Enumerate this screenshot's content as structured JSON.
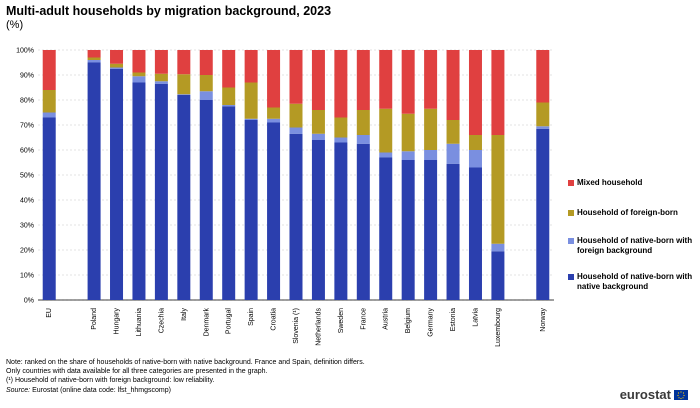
{
  "header": {
    "title": "Multi-adult households by migration background, 2023",
    "subtitle": "(%)"
  },
  "legend": {
    "items": [
      {
        "label": "Mixed household",
        "color": "#E04040"
      },
      {
        "label": "Household of foreign-born",
        "color": "#B49A24"
      },
      {
        "label": "Household of native-born with foreign background",
        "color": "#7A8FE0"
      },
      {
        "label": "Household of native-born with native background",
        "color": "#2B3FAE"
      }
    ]
  },
  "notes": {
    "line1": "Note: ranked on the share of households of native-born with native background. France and Spain, definition differs.",
    "line2": "Only countries with data available for all three categories are presented in the graph.",
    "line3": "(¹) Household of native-born with foreign background: low reliability.",
    "source_label": "Source:",
    "source_text": " Eurostat (online data code: lfst_hhmgscomp)"
  },
  "logo": {
    "text": "eurostat",
    "icon": "eu-flag-icon"
  },
  "chart_data": {
    "type": "bar",
    "stacked": true,
    "categories": [
      "EU",
      "",
      "Poland",
      "Hungary",
      "Lithuania",
      "Czechia",
      "Italy",
      "Denmark",
      "Portugal",
      "Spain",
      "Croatia",
      "Slovenia (¹)",
      "Netherlands",
      "Sweden",
      "France",
      "Austria",
      "Belgium",
      "Germany",
      "Estonia",
      "Latvia",
      "Luxembourg",
      "",
      "Norway"
    ],
    "series": [
      {
        "name": "Household of native-born with native background",
        "color": "#2B3FAE",
        "values": [
          73,
          null,
          95,
          92.5,
          87,
          86.5,
          82,
          80,
          77.5,
          72,
          71,
          66.5,
          64,
          63,
          62.5,
          57,
          56,
          56,
          54.5,
          53,
          19.5,
          null,
          68.5
        ]
      },
      {
        "name": "Household of native-born with foreign background",
        "color": "#7A8FE0",
        "values": [
          2,
          null,
          1,
          0.5,
          2.5,
          1,
          0.3,
          3.5,
          0.5,
          0.5,
          1.5,
          2.5,
          2.5,
          2,
          3.5,
          2,
          3.5,
          4,
          8,
          7,
          3,
          null,
          1
        ]
      },
      {
        "name": "Household of foreign-born",
        "color": "#B49A24",
        "values": [
          9,
          null,
          1,
          1.5,
          1.5,
          3,
          8,
          6.5,
          7,
          14.5,
          4.5,
          9.5,
          9.5,
          8,
          10,
          17.5,
          15,
          16.5,
          9.5,
          6,
          43.5,
          null,
          9.5
        ]
      },
      {
        "name": "Mixed household",
        "color": "#E04040",
        "values": [
          16,
          null,
          3,
          5.5,
          9,
          9.5,
          9.7,
          10,
          15,
          13,
          23,
          21.5,
          24,
          27,
          24,
          23.5,
          25.5,
          23.5,
          28,
          34,
          34,
          null,
          21
        ]
      }
    ],
    "ylim": [
      0,
      100
    ],
    "yticks": [
      "0%",
      "10%",
      "20%",
      "30%",
      "40%",
      "50%",
      "60%",
      "70%",
      "80%",
      "90%",
      "100%"
    ],
    "grid": true,
    "legend_position": "right"
  }
}
